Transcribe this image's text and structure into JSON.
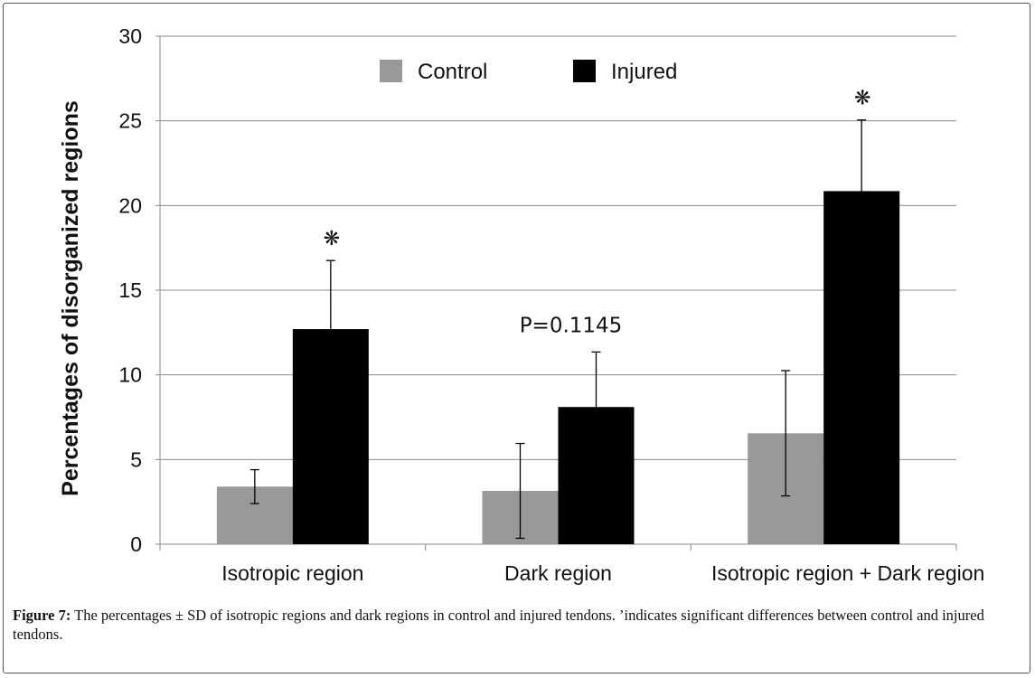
{
  "chart_data": {
    "type": "bar",
    "ylabel": "Percentages of disorganized regions",
    "ylim": [
      0,
      30
    ],
    "yticks": [
      0,
      5,
      10,
      15,
      20,
      25,
      30
    ],
    "grid": true,
    "legend_position": "top-center",
    "categories": [
      "Isotropic region",
      "Dark region",
      "Isotropic region + Dark region"
    ],
    "series": [
      {
        "name": "Control",
        "color": "#999999",
        "values": [
          3.4,
          3.15,
          6.55
        ],
        "errors": [
          1.0,
          2.8,
          3.7
        ]
      },
      {
        "name": "Injured",
        "color": "#000000",
        "values": [
          12.7,
          8.1,
          20.85
        ],
        "errors": [
          4.05,
          3.25,
          4.2
        ]
      }
    ],
    "annotations": [
      {
        "category": 0,
        "series": 1,
        "text": "❋"
      },
      {
        "category": 1,
        "series": 1,
        "text": "P=0.1145"
      },
      {
        "category": 2,
        "series": 1,
        "text": "❋"
      }
    ]
  },
  "caption": {
    "label": "Figure 7:",
    "text": " The percentages ± SD of isotropic regions and dark regions in control and injured tendons. ’indicates significant differences between control and injured tendons."
  }
}
